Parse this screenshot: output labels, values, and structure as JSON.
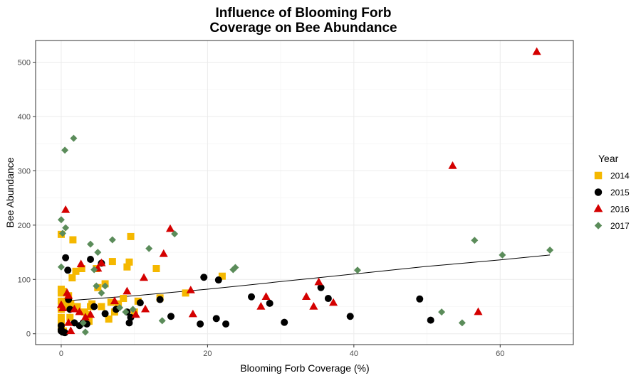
{
  "chart_data": {
    "type": "scatter",
    "title_line1": "Influence of Blooming Forb",
    "title_line2": "Coverage on Bee Abundance",
    "xlabel": "Blooming Forb Coverage (%)",
    "ylabel": "Bee Abundance",
    "xlim": [
      -3.5,
      70
    ],
    "ylim": [
      -20,
      540
    ],
    "xticks": [
      0,
      20,
      40,
      60
    ],
    "yticks": [
      0,
      100,
      200,
      300,
      400,
      500
    ],
    "grid": true,
    "legend_title": "Year",
    "legend_position": "right",
    "series": [
      {
        "name": "2014",
        "color": "#F5B800",
        "marker": "square",
        "points": [
          [
            0.0,
            183
          ],
          [
            0.0,
            82
          ],
          [
            0.0,
            75
          ],
          [
            0.0,
            60
          ],
          [
            0.0,
            45
          ],
          [
            0.0,
            30
          ],
          [
            0.0,
            20
          ],
          [
            0.0,
            10
          ],
          [
            0.3,
            78
          ],
          [
            0.3,
            5
          ],
          [
            0.5,
            50
          ],
          [
            0.8,
            60
          ],
          [
            1.0,
            70
          ],
          [
            1.2,
            30
          ],
          [
            1.3,
            55
          ],
          [
            1.5,
            103
          ],
          [
            1.6,
            173
          ],
          [
            2.0,
            115
          ],
          [
            2.2,
            50
          ],
          [
            2.8,
            120
          ],
          [
            3.2,
            40
          ],
          [
            3.5,
            35
          ],
          [
            3.8,
            23
          ],
          [
            4.0,
            50
          ],
          [
            4.2,
            55
          ],
          [
            4.8,
            120
          ],
          [
            5.0,
            85
          ],
          [
            5.5,
            50
          ],
          [
            6.0,
            92
          ],
          [
            6.5,
            27
          ],
          [
            6.8,
            58
          ],
          [
            7.0,
            133
          ],
          [
            7.3,
            40
          ],
          [
            7.8,
            55
          ],
          [
            8.5,
            65
          ],
          [
            9.0,
            123
          ],
          [
            9.3,
            132
          ],
          [
            9.5,
            179
          ],
          [
            10.0,
            40
          ],
          [
            10.5,
            60
          ],
          [
            13.0,
            120
          ],
          [
            13.5,
            66
          ],
          [
            17.0,
            75
          ],
          [
            22.0,
            106
          ]
        ]
      },
      {
        "name": "2015",
        "color": "#000000",
        "marker": "circle",
        "points": [
          [
            0.0,
            15
          ],
          [
            0.0,
            8
          ],
          [
            0.0,
            5
          ],
          [
            0.2,
            3
          ],
          [
            0.5,
            2
          ],
          [
            0.6,
            140
          ],
          [
            0.9,
            117
          ],
          [
            1.0,
            63
          ],
          [
            1.2,
            45
          ],
          [
            1.8,
            20
          ],
          [
            2.5,
            15
          ],
          [
            3.0,
            20
          ],
          [
            3.5,
            18
          ],
          [
            4.0,
            137
          ],
          [
            4.5,
            50
          ],
          [
            5.5,
            130
          ],
          [
            6.0,
            37
          ],
          [
            7.5,
            45
          ],
          [
            9.0,
            40
          ],
          [
            9.3,
            20
          ],
          [
            9.5,
            30
          ],
          [
            10.8,
            57
          ],
          [
            13.5,
            63
          ],
          [
            15.0,
            32
          ],
          [
            19.0,
            18
          ],
          [
            19.5,
            104
          ],
          [
            21.2,
            28
          ],
          [
            21.5,
            99
          ],
          [
            22.5,
            18
          ],
          [
            26.0,
            68
          ],
          [
            28.5,
            56
          ],
          [
            30.5,
            21
          ],
          [
            35.5,
            85
          ],
          [
            36.5,
            65
          ],
          [
            39.5,
            32
          ],
          [
            49.0,
            64
          ],
          [
            50.5,
            25
          ]
        ]
      },
      {
        "name": "2016",
        "color": "#D40000",
        "marker": "triangle",
        "points": [
          [
            0.0,
            53
          ],
          [
            0.2,
            47
          ],
          [
            0.6,
            228
          ],
          [
            0.8,
            75
          ],
          [
            1.0,
            70
          ],
          [
            1.0,
            20
          ],
          [
            1.3,
            5
          ],
          [
            1.8,
            45
          ],
          [
            2.5,
            40
          ],
          [
            2.7,
            128
          ],
          [
            3.3,
            30
          ],
          [
            4.0,
            35
          ],
          [
            5.0,
            120
          ],
          [
            5.5,
            130
          ],
          [
            7.3,
            60
          ],
          [
            9.0,
            78
          ],
          [
            10.2,
            35
          ],
          [
            11.3,
            103
          ],
          [
            11.5,
            45
          ],
          [
            14.0,
            147
          ],
          [
            14.9,
            193
          ],
          [
            17.7,
            80
          ],
          [
            18.0,
            36
          ],
          [
            27.3,
            50
          ],
          [
            28.0,
            68
          ],
          [
            33.5,
            68
          ],
          [
            34.5,
            50
          ],
          [
            35.2,
            95
          ],
          [
            37.2,
            57
          ],
          [
            53.5,
            309
          ],
          [
            57.0,
            40
          ],
          [
            65.0,
            519
          ]
        ]
      },
      {
        "name": "2017",
        "color": "#5B8C5A",
        "marker": "diamond",
        "points": [
          [
            0.0,
            210
          ],
          [
            0.0,
            123
          ],
          [
            0.2,
            185
          ],
          [
            0.5,
            338
          ],
          [
            0.6,
            195
          ],
          [
            1.7,
            360
          ],
          [
            3.0,
            20
          ],
          [
            3.3,
            3
          ],
          [
            4.0,
            165
          ],
          [
            4.5,
            118
          ],
          [
            4.8,
            88
          ],
          [
            5.0,
            150
          ],
          [
            5.5,
            75
          ],
          [
            6.0,
            88
          ],
          [
            7.0,
            173
          ],
          [
            8.0,
            48
          ],
          [
            8.8,
            40
          ],
          [
            9.8,
            45
          ],
          [
            12.0,
            157
          ],
          [
            13.8,
            24
          ],
          [
            15.5,
            184
          ],
          [
            23.5,
            118
          ],
          [
            23.8,
            122
          ],
          [
            40.5,
            117
          ],
          [
            52.0,
            40
          ],
          [
            54.8,
            20
          ],
          [
            56.5,
            172
          ],
          [
            60.3,
            145
          ],
          [
            66.8,
            154
          ]
        ]
      }
    ],
    "trend_line": [
      [
        0.0,
        60
      ],
      [
        5,
        65
      ],
      [
        10,
        70
      ],
      [
        15,
        76
      ],
      [
        20,
        82
      ],
      [
        25,
        89
      ],
      [
        30,
        96
      ],
      [
        35,
        103
      ],
      [
        40,
        110
      ],
      [
        45,
        117
      ],
      [
        50,
        124
      ],
      [
        55,
        130
      ],
      [
        60,
        136
      ],
      [
        66.8,
        145
      ]
    ]
  }
}
